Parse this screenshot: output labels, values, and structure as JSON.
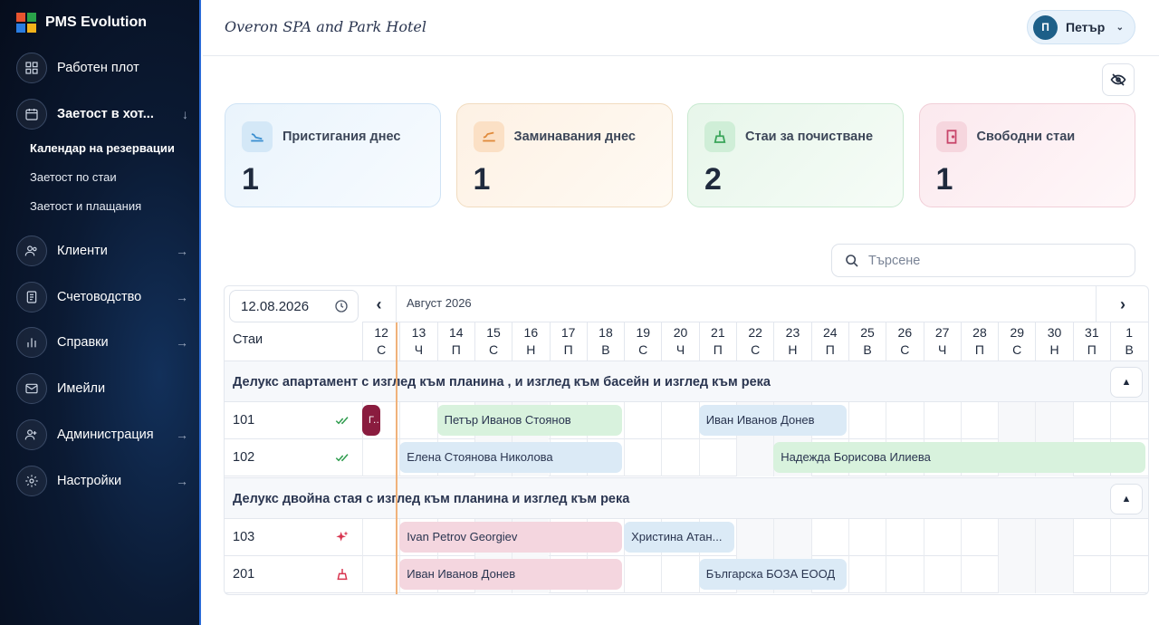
{
  "brand": {
    "name": "PMS Evolution"
  },
  "sidebar": {
    "items": [
      {
        "label": "Работен плот",
        "icon": "dashboard-icon",
        "arrow": ""
      },
      {
        "label": "Заетост в хот...",
        "icon": "calendar-icon",
        "arrow": "↓"
      },
      {
        "label": "Клиенти",
        "icon": "users-icon",
        "arrow": "→"
      },
      {
        "label": "Счетоводство",
        "icon": "ledger-icon",
        "arrow": "→"
      },
      {
        "label": "Справки",
        "icon": "chart-icon",
        "arrow": "→"
      },
      {
        "label": "Имейли",
        "icon": "mail-icon",
        "arrow": ""
      },
      {
        "label": "Администрация",
        "icon": "admin-icon",
        "arrow": "→"
      },
      {
        "label": "Настройки",
        "icon": "gear-icon",
        "arrow": "→"
      }
    ],
    "subitems": [
      {
        "label": "Календар на резервации",
        "active": true
      },
      {
        "label": "Заетост по стаи",
        "active": false
      },
      {
        "label": "Заетост и плащания",
        "active": false
      }
    ]
  },
  "header": {
    "hotel": "Overon SPA and Park Hotel",
    "user_initial": "П",
    "user_name": "Петър"
  },
  "cards": [
    {
      "title": "Пристигания днес",
      "value": "1",
      "icon": "plane-landing-icon",
      "color": "#3b8fd0"
    },
    {
      "title": "Заминавания днес",
      "value": "1",
      "icon": "plane-takeoff-icon",
      "color": "#e08a3a"
    },
    {
      "title": "Стаи за почистване",
      "value": "2",
      "icon": "broom-icon",
      "color": "#3aa55a"
    },
    {
      "title": "Свободни стаи",
      "value": "1",
      "icon": "door-icon",
      "color": "#c8456a"
    }
  ],
  "search": {
    "placeholder": "Търсене"
  },
  "calendar": {
    "date": "12.08.2026",
    "rooms_label": "Стаи",
    "month": "Август 2026",
    "days": [
      {
        "n": "12",
        "w": "С"
      },
      {
        "n": "13",
        "w": "Ч"
      },
      {
        "n": "14",
        "w": "П"
      },
      {
        "n": "15",
        "w": "С"
      },
      {
        "n": "16",
        "w": "Н"
      },
      {
        "n": "17",
        "w": "П"
      },
      {
        "n": "18",
        "w": "В"
      },
      {
        "n": "19",
        "w": "С"
      },
      {
        "n": "20",
        "w": "Ч"
      },
      {
        "n": "21",
        "w": "П"
      },
      {
        "n": "22",
        "w": "С"
      },
      {
        "n": "23",
        "w": "Н"
      },
      {
        "n": "24",
        "w": "П"
      },
      {
        "n": "25",
        "w": "В"
      },
      {
        "n": "26",
        "w": "С"
      },
      {
        "n": "27",
        "w": "Ч"
      },
      {
        "n": "28",
        "w": "П"
      },
      {
        "n": "29",
        "w": "С"
      },
      {
        "n": "30",
        "w": "Н"
      },
      {
        "n": "31",
        "w": "П"
      },
      {
        "n": "1",
        "w": "В"
      }
    ],
    "groups": [
      {
        "name": "Делукс апартамент с изглед към планина , и изглед към басейн и изглед към река"
      },
      {
        "name": "Делукс двойна стая с изглед към планина и изглед към река"
      }
    ],
    "rooms": [
      {
        "num": "101",
        "status": "clean-check-icon"
      },
      {
        "num": "102",
        "status": "clean-check-icon"
      },
      {
        "num": "103",
        "status": "sparkle-icon"
      },
      {
        "num": "201",
        "status": "broom-icon"
      }
    ],
    "bookings": [
      {
        "room": 0,
        "guest": "Г...",
        "start": -0.5,
        "span": 1.0,
        "color": "maroon"
      },
      {
        "room": 0,
        "guest": "Петър Иванов Стоянов",
        "start": 1.5,
        "span": 5,
        "color": "green"
      },
      {
        "room": 0,
        "guest": "Иван Иванов Донев",
        "start": 8.5,
        "span": 4,
        "color": "blue"
      },
      {
        "room": 1,
        "guest": "Елена Стоянова Николова",
        "start": 0.5,
        "span": 6,
        "color": "blue"
      },
      {
        "room": 1,
        "guest": "Надежда Борисова Илиева",
        "start": 10.5,
        "span": 10,
        "color": "green"
      },
      {
        "room": 2,
        "guest": "Ivan Petrov Georgiev",
        "start": 0.5,
        "span": 6,
        "color": "pink"
      },
      {
        "room": 2,
        "guest": "Христина Атан...",
        "start": 6.5,
        "span": 3,
        "color": "blue"
      },
      {
        "room": 3,
        "guest": "Иван Иванов Донев",
        "start": 0.5,
        "span": 6,
        "color": "pink"
      },
      {
        "room": 3,
        "guest": "Българска БОЗА ЕООД",
        "start": 8.5,
        "span": 4,
        "color": "blue"
      }
    ]
  }
}
